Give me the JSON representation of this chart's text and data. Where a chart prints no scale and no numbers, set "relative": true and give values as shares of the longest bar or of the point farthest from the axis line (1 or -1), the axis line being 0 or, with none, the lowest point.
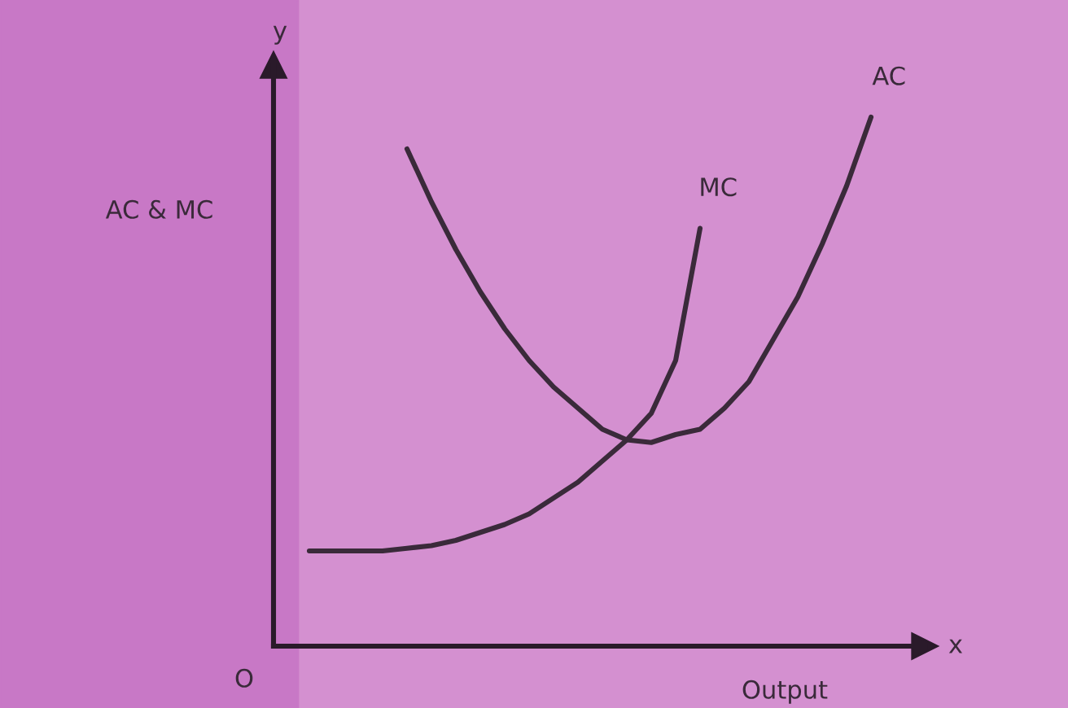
{
  "chart_data": {
    "type": "line",
    "relative": true,
    "xlabel": "Output",
    "ylabel": "AC & MC",
    "annotations": [
      "O",
      "x",
      "y"
    ],
    "categories": [
      null,
      null,
      null,
      null,
      null,
      null,
      null,
      null,
      null,
      null,
      null,
      null,
      null,
      null,
      null,
      null,
      null,
      null,
      null,
      null,
      null,
      null,
      null,
      null
    ],
    "series": [
      {
        "name": "MC",
        "color": "#3a2a3a",
        "values": [
          0.18,
          0.18,
          0.18,
          0.18,
          0.185,
          0.19,
          0.2,
          0.215,
          0.23,
          0.25,
          0.28,
          0.31,
          0.35,
          0.39,
          0.44,
          0.54,
          0.79,
          null,
          null,
          null,
          null,
          null,
          null,
          null
        ]
      },
      {
        "name": "AC",
        "color": "#3a2a3a",
        "values": [
          null,
          null,
          null,
          null,
          0.94,
          0.84,
          0.75,
          0.67,
          0.6,
          0.54,
          0.49,
          0.45,
          0.41,
          0.39,
          0.385,
          0.4,
          0.41,
          0.45,
          0.5,
          0.58,
          0.66,
          0.76,
          0.87,
          1.0
        ]
      }
    ]
  }
}
